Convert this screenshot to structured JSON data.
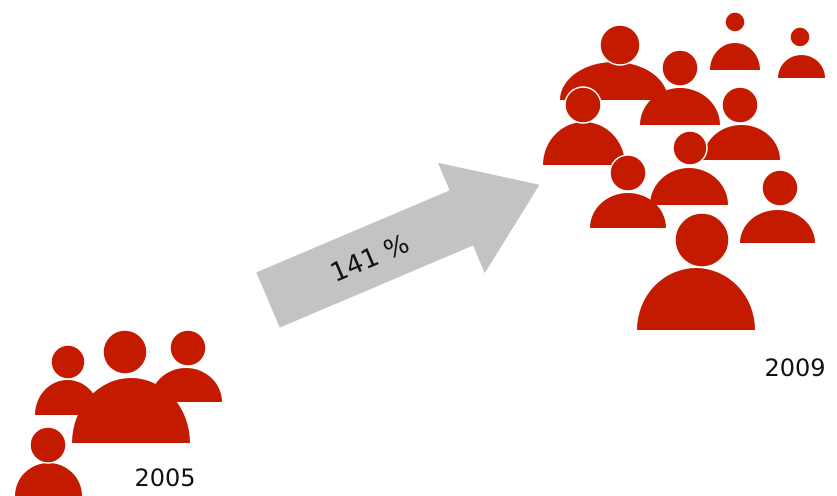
{
  "labels": {
    "growth": "141 %",
    "start_year": "2005",
    "end_year": "2009"
  }
}
